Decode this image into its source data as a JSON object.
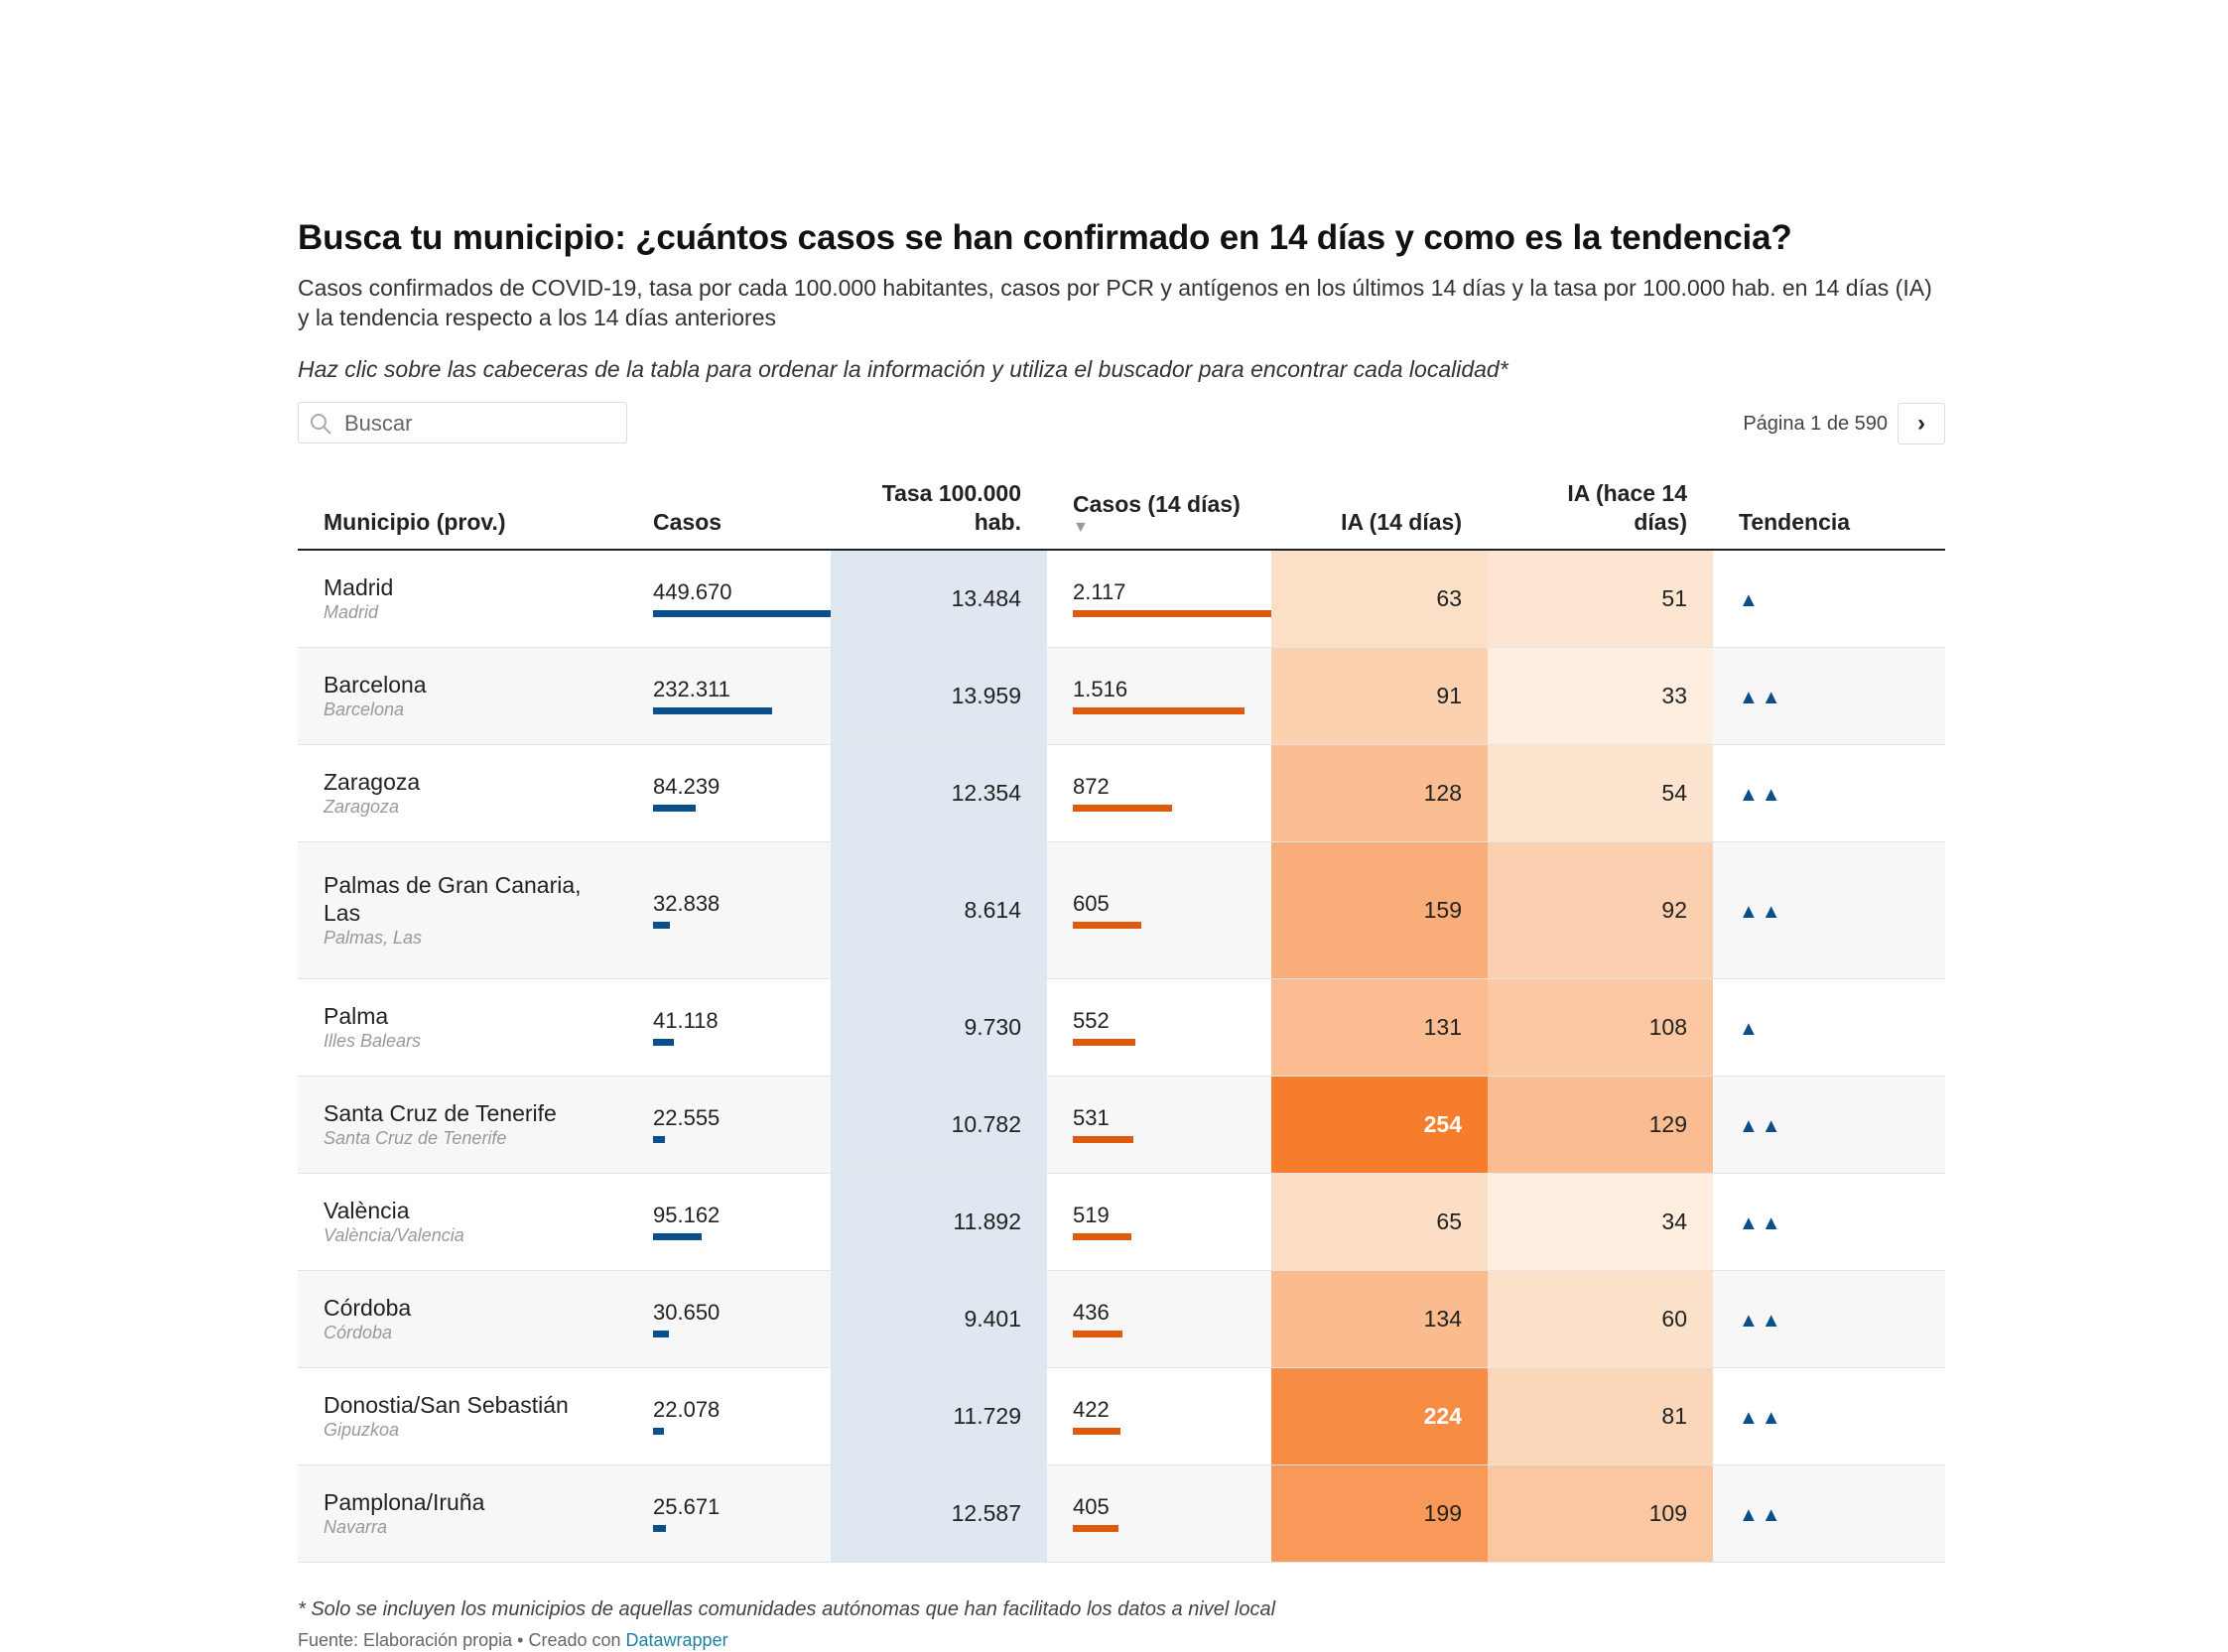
{
  "title": "Busca tu municipio: ¿cuántos casos se han confirmado en 14 días y como es la tendencia?",
  "subtitle": "Casos confirmados de COVID-19, tasa por cada 100.000 habitantes, casos por PCR y antígenos en los últimos 14 días y la tasa por 100.000 hab. en 14 días (IA) y la tendencia respecto a los 14 días anteriores",
  "note": "Haz clic sobre las cabeceras de la tabla para ordenar la información y utiliza el buscador para encontrar cada localidad*",
  "search": {
    "placeholder": "Buscar",
    "value": ""
  },
  "pager": {
    "text": "Página 1 de 590"
  },
  "icons": {
    "search": "search-icon",
    "next": "chevron-right-icon",
    "sort": "sort-down-icon",
    "trend": "triangle-up-icon"
  },
  "colors": {
    "bar_cases": "#0b4f8a",
    "bar_cases14": "#e05a0e",
    "rate_bg": "#dfe8f0",
    "ia_low": "#fdeee0",
    "ia_high": "#f57d2c",
    "trend": "#0b4f8a"
  },
  "headers": {
    "municipio": "Municipio (prov.)",
    "casos": "Casos",
    "tasa": "Tasa 100.000 hab.",
    "casos14": "Casos (14 días)",
    "ia14": "IA (14 días)",
    "ia_prev": "IA (hace 14 días)",
    "tendencia": "Tendencia"
  },
  "chart_data": {
    "type": "table",
    "columns": [
      "Municipio (prov.)",
      "Casos",
      "Tasa 100.000 hab.",
      "Casos (14 días)",
      "IA (14 días)",
      "IA (hace 14 días)",
      "Tendencia"
    ],
    "sorted_by": "Casos (14 días)",
    "sort_direction": "descending",
    "rows": [
      {
        "municipio": "Madrid",
        "provincia": "Madrid",
        "casos": 449670,
        "casos_label": "449.670",
        "tasa": "13.484",
        "casos14": 2117,
        "casos14_label": "2.117",
        "ia14": 63,
        "ia_prev": 51,
        "tendencia": "▲"
      },
      {
        "municipio": "Barcelona",
        "provincia": "Barcelona",
        "casos": 232311,
        "casos_label": "232.311",
        "tasa": "13.959",
        "casos14": 1516,
        "casos14_label": "1.516",
        "ia14": 91,
        "ia_prev": 33,
        "tendencia": "▲▲"
      },
      {
        "municipio": "Zaragoza",
        "provincia": "Zaragoza",
        "casos": 84239,
        "casos_label": "84.239",
        "tasa": "12.354",
        "casos14": 872,
        "casos14_label": "872",
        "ia14": 128,
        "ia_prev": 54,
        "tendencia": "▲▲"
      },
      {
        "municipio": "Palmas de Gran Canaria, Las",
        "provincia": "Palmas, Las",
        "casos": 32838,
        "casos_label": "32.838",
        "tasa": "8.614",
        "casos14": 605,
        "casos14_label": "605",
        "ia14": 159,
        "ia_prev": 92,
        "tendencia": "▲▲"
      },
      {
        "municipio": "Palma",
        "provincia": "Illes Balears",
        "casos": 41118,
        "casos_label": "41.118",
        "tasa": "9.730",
        "casos14": 552,
        "casos14_label": "552",
        "ia14": 131,
        "ia_prev": 108,
        "tendencia": "▲"
      },
      {
        "municipio": "Santa Cruz de Tenerife",
        "provincia": "Santa Cruz de Tenerife",
        "casos": 22555,
        "casos_label": "22.555",
        "tasa": "10.782",
        "casos14": 531,
        "casos14_label": "531",
        "ia14": 254,
        "ia_prev": 129,
        "tendencia": "▲▲"
      },
      {
        "municipio": "València",
        "provincia": "València/Valencia",
        "casos": 95162,
        "casos_label": "95.162",
        "tasa": "11.892",
        "casos14": 519,
        "casos14_label": "519",
        "ia14": 65,
        "ia_prev": 34,
        "tendencia": "▲▲"
      },
      {
        "municipio": "Córdoba",
        "provincia": "Córdoba",
        "casos": 30650,
        "casos_label": "30.650",
        "tasa": "9.401",
        "casos14": 436,
        "casos14_label": "436",
        "ia14": 134,
        "ia_prev": 60,
        "tendencia": "▲▲"
      },
      {
        "municipio": "Donostia/San Sebastián",
        "provincia": "Gipuzkoa",
        "casos": 22078,
        "casos_label": "22.078",
        "tasa": "11.729",
        "casos14": 422,
        "casos14_label": "422",
        "ia14": 224,
        "ia_prev": 81,
        "tendencia": "▲▲"
      },
      {
        "municipio": "Pamplona/Iruña",
        "provincia": "Navarra",
        "casos": 25671,
        "casos_label": "25.671",
        "tasa": "12.587",
        "casos14": 405,
        "casos14_label": "405",
        "ia14": 199,
        "ia_prev": 109,
        "tendencia": "▲▲"
      }
    ]
  },
  "footnote": "* Solo se incluyen los municipios de aquellas comunidades autónomas que han facilitado los datos a nivel local",
  "source": {
    "prefix": "Fuente: Elaboración propia • Creado con ",
    "link": "Datawrapper"
  }
}
